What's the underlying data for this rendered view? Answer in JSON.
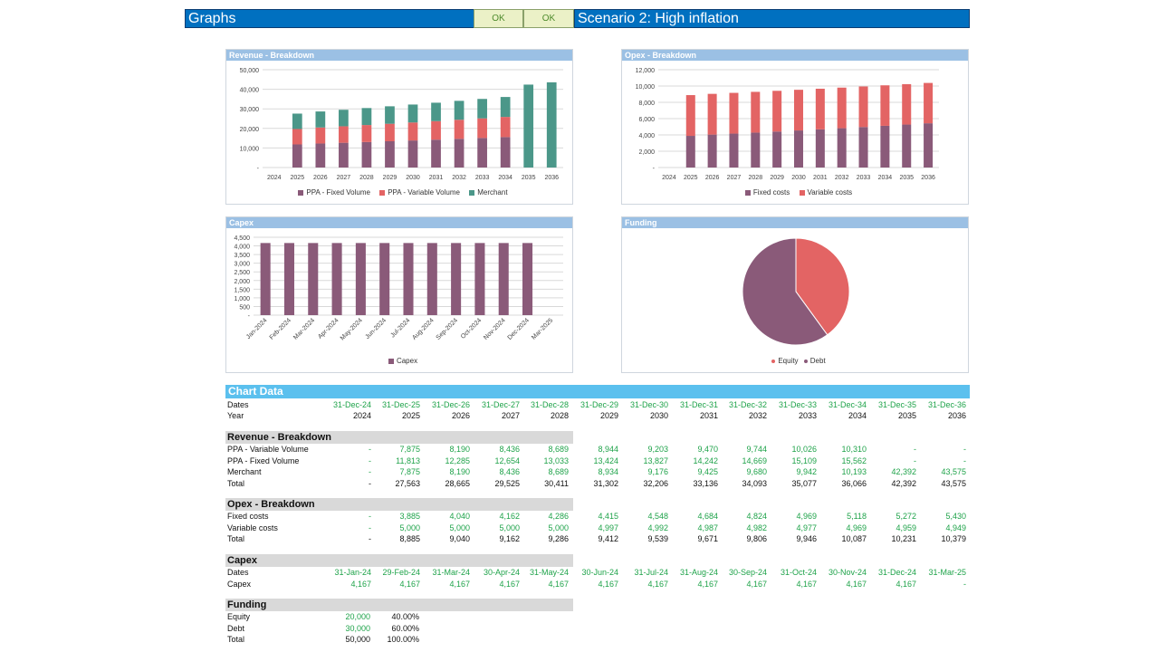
{
  "header": {
    "title": "Graphs",
    "ok_button_1": "OK",
    "ok_button_2": "OK",
    "scenario_title": "Scenario 2: High inflation"
  },
  "colors": {
    "purple": "#8a5a79",
    "red": "#e36464",
    "teal": "#4b9789",
    "header_blue": "#0070c0",
    "panel_title_blue": "#9bc0e4",
    "chart_data_band": "#5bc0ee",
    "section_gray": "#d9d9d9",
    "green_text": "#1fa34a"
  },
  "chart_data": [
    {
      "type": "bar",
      "stacked": true,
      "title": "Revenue - Breakdown",
      "categories": [
        "2024",
        "2025",
        "2026",
        "2027",
        "2028",
        "2029",
        "2030",
        "2031",
        "2032",
        "2033",
        "2034",
        "2035",
        "2036"
      ],
      "series": [
        {
          "name": "PPA - Fixed Volume",
          "color": "#8a5a79",
          "values": [
            0,
            11813,
            12285,
            12654,
            13033,
            13424,
            13827,
            14242,
            14669,
            15109,
            15562,
            0,
            0
          ]
        },
        {
          "name": "PPA - Variable Volume",
          "color": "#e36464",
          "values": [
            0,
            7875,
            8190,
            8436,
            8689,
            8944,
            9203,
            9470,
            9744,
            10026,
            10310,
            0,
            0
          ]
        },
        {
          "name": "Merchant",
          "color": "#4b9789",
          "values": [
            0,
            7875,
            8190,
            8436,
            8689,
            8934,
            9176,
            9425,
            9680,
            9942,
            10193,
            42392,
            43575
          ]
        }
      ],
      "ylim": [
        0,
        50000
      ],
      "yticks": [
        "-",
        "10,000",
        "20,000",
        "30,000",
        "40,000",
        "50,000"
      ],
      "grid": true,
      "legend": "bottom"
    },
    {
      "type": "bar",
      "stacked": true,
      "title": "Opex - Breakdown",
      "categories": [
        "2024",
        "2025",
        "2026",
        "2027",
        "2028",
        "2029",
        "2030",
        "2031",
        "2032",
        "2033",
        "2034",
        "2035",
        "2036"
      ],
      "series": [
        {
          "name": "Fixed costs",
          "color": "#8a5a79",
          "values": [
            0,
            3885,
            4040,
            4162,
            4286,
            4415,
            4548,
            4684,
            4824,
            4969,
            5118,
            5272,
            5430
          ]
        },
        {
          "name": "Variable costs",
          "color": "#e36464",
          "values": [
            0,
            5000,
            5000,
            5000,
            5000,
            4997,
            4992,
            4987,
            4982,
            4977,
            4969,
            4959,
            4949
          ]
        }
      ],
      "ylim": [
        0,
        12000
      ],
      "yticks": [
        "-",
        "2,000",
        "4,000",
        "6,000",
        "8,000",
        "10,000",
        "12,000"
      ],
      "grid": true,
      "legend": "bottom"
    },
    {
      "type": "bar",
      "title": "Capex",
      "categories": [
        "Jan-2024",
        "Feb-2024",
        "Mar-2024",
        "Apr-2024",
        "May-2024",
        "Jun-2024",
        "Jul-2024",
        "Aug-2024",
        "Sep-2024",
        "Oct-2024",
        "Nov-2024",
        "Dec-2024",
        "Mar-2025"
      ],
      "series": [
        {
          "name": "Capex",
          "color": "#8a5a79",
          "values": [
            4167,
            4167,
            4167,
            4167,
            4167,
            4167,
            4167,
            4167,
            4167,
            4167,
            4167,
            4167,
            0
          ]
        }
      ],
      "ylim": [
        0,
        4500
      ],
      "yticks": [
        "-",
        "500",
        "1,000",
        "1,500",
        "2,000",
        "2,500",
        "3,000",
        "3,500",
        "4,000",
        "4,500"
      ],
      "grid": true,
      "legend": "bottom"
    },
    {
      "type": "pie",
      "title": "Funding",
      "categories": [
        "Equity",
        "Debt"
      ],
      "values": [
        20000,
        30000
      ],
      "colors": [
        "#e36464",
        "#8a5a79"
      ],
      "legend": "bottom"
    }
  ],
  "table": {
    "title": "Chart Data",
    "dates_label": "Dates",
    "year_label": "Year",
    "dates": [
      "31-Dec-24",
      "31-Dec-25",
      "31-Dec-26",
      "31-Dec-27",
      "31-Dec-28",
      "31-Dec-29",
      "31-Dec-30",
      "31-Dec-31",
      "31-Dec-32",
      "31-Dec-33",
      "31-Dec-34",
      "31-Dec-35",
      "31-Dec-36"
    ],
    "years": [
      "2024",
      "2025",
      "2026",
      "2027",
      "2028",
      "2029",
      "2030",
      "2031",
      "2032",
      "2033",
      "2034",
      "2035",
      "2036"
    ],
    "revenue": {
      "title": "Revenue - Breakdown",
      "rows": [
        {
          "label": "PPA - Variable Volume",
          "color": "g",
          "values": [
            "-",
            "7,875",
            "8,190",
            "8,436",
            "8,689",
            "8,944",
            "9,203",
            "9,470",
            "9,744",
            "10,026",
            "10,310",
            "-",
            "-"
          ]
        },
        {
          "label": "PPA - Fixed Volume",
          "color": "g",
          "values": [
            "-",
            "11,813",
            "12,285",
            "12,654",
            "13,033",
            "13,424",
            "13,827",
            "14,242",
            "14,669",
            "15,109",
            "15,562",
            "-",
            "-"
          ]
        },
        {
          "label": "Merchant",
          "color": "g",
          "values": [
            "-",
            "7,875",
            "8,190",
            "8,436",
            "8,689",
            "8,934",
            "9,176",
            "9,425",
            "9,680",
            "9,942",
            "10,193",
            "42,392",
            "43,575"
          ]
        },
        {
          "label": "Total",
          "color": "k",
          "values": [
            "-",
            "27,563",
            "28,665",
            "29,525",
            "30,411",
            "31,302",
            "32,206",
            "33,136",
            "34,093",
            "35,077",
            "36,066",
            "42,392",
            "43,575"
          ]
        }
      ]
    },
    "opex": {
      "title": "Opex - Breakdown",
      "rows": [
        {
          "label": "Fixed costs",
          "color": "g",
          "values": [
            "-",
            "3,885",
            "4,040",
            "4,162",
            "4,286",
            "4,415",
            "4,548",
            "4,684",
            "4,824",
            "4,969",
            "5,118",
            "5,272",
            "5,430"
          ]
        },
        {
          "label": "Variable costs",
          "color": "g",
          "values": [
            "-",
            "5,000",
            "5,000",
            "5,000",
            "5,000",
            "4,997",
            "4,992",
            "4,987",
            "4,982",
            "4,977",
            "4,969",
            "4,959",
            "4,949"
          ]
        },
        {
          "label": "Total",
          "color": "k",
          "values": [
            "-",
            "8,885",
            "9,040",
            "9,162",
            "9,286",
            "9,412",
            "9,539",
            "9,671",
            "9,806",
            "9,946",
            "10,087",
            "10,231",
            "10,379"
          ]
        }
      ]
    },
    "capex": {
      "title": "Capex",
      "rows": [
        {
          "label": "Dates",
          "color": "g",
          "values": [
            "31-Jan-24",
            "29-Feb-24",
            "31-Mar-24",
            "30-Apr-24",
            "31-May-24",
            "30-Jun-24",
            "31-Jul-24",
            "31-Aug-24",
            "30-Sep-24",
            "31-Oct-24",
            "30-Nov-24",
            "31-Dec-24",
            "31-Mar-25"
          ]
        },
        {
          "label": "Capex",
          "color": "g",
          "values": [
            "4,167",
            "4,167",
            "4,167",
            "4,167",
            "4,167",
            "4,167",
            "4,167",
            "4,167",
            "4,167",
            "4,167",
            "4,167",
            "4,167",
            "-"
          ]
        }
      ]
    },
    "funding": {
      "title": "Funding",
      "rows": [
        {
          "label": "Equity",
          "amount": "20,000",
          "pct": "40.00%",
          "color": "g"
        },
        {
          "label": "Debt",
          "amount": "30,000",
          "pct": "60.00%",
          "color": "g"
        },
        {
          "label": "Total",
          "amount": "50,000",
          "pct": "100.00%",
          "color": "k"
        }
      ]
    }
  }
}
